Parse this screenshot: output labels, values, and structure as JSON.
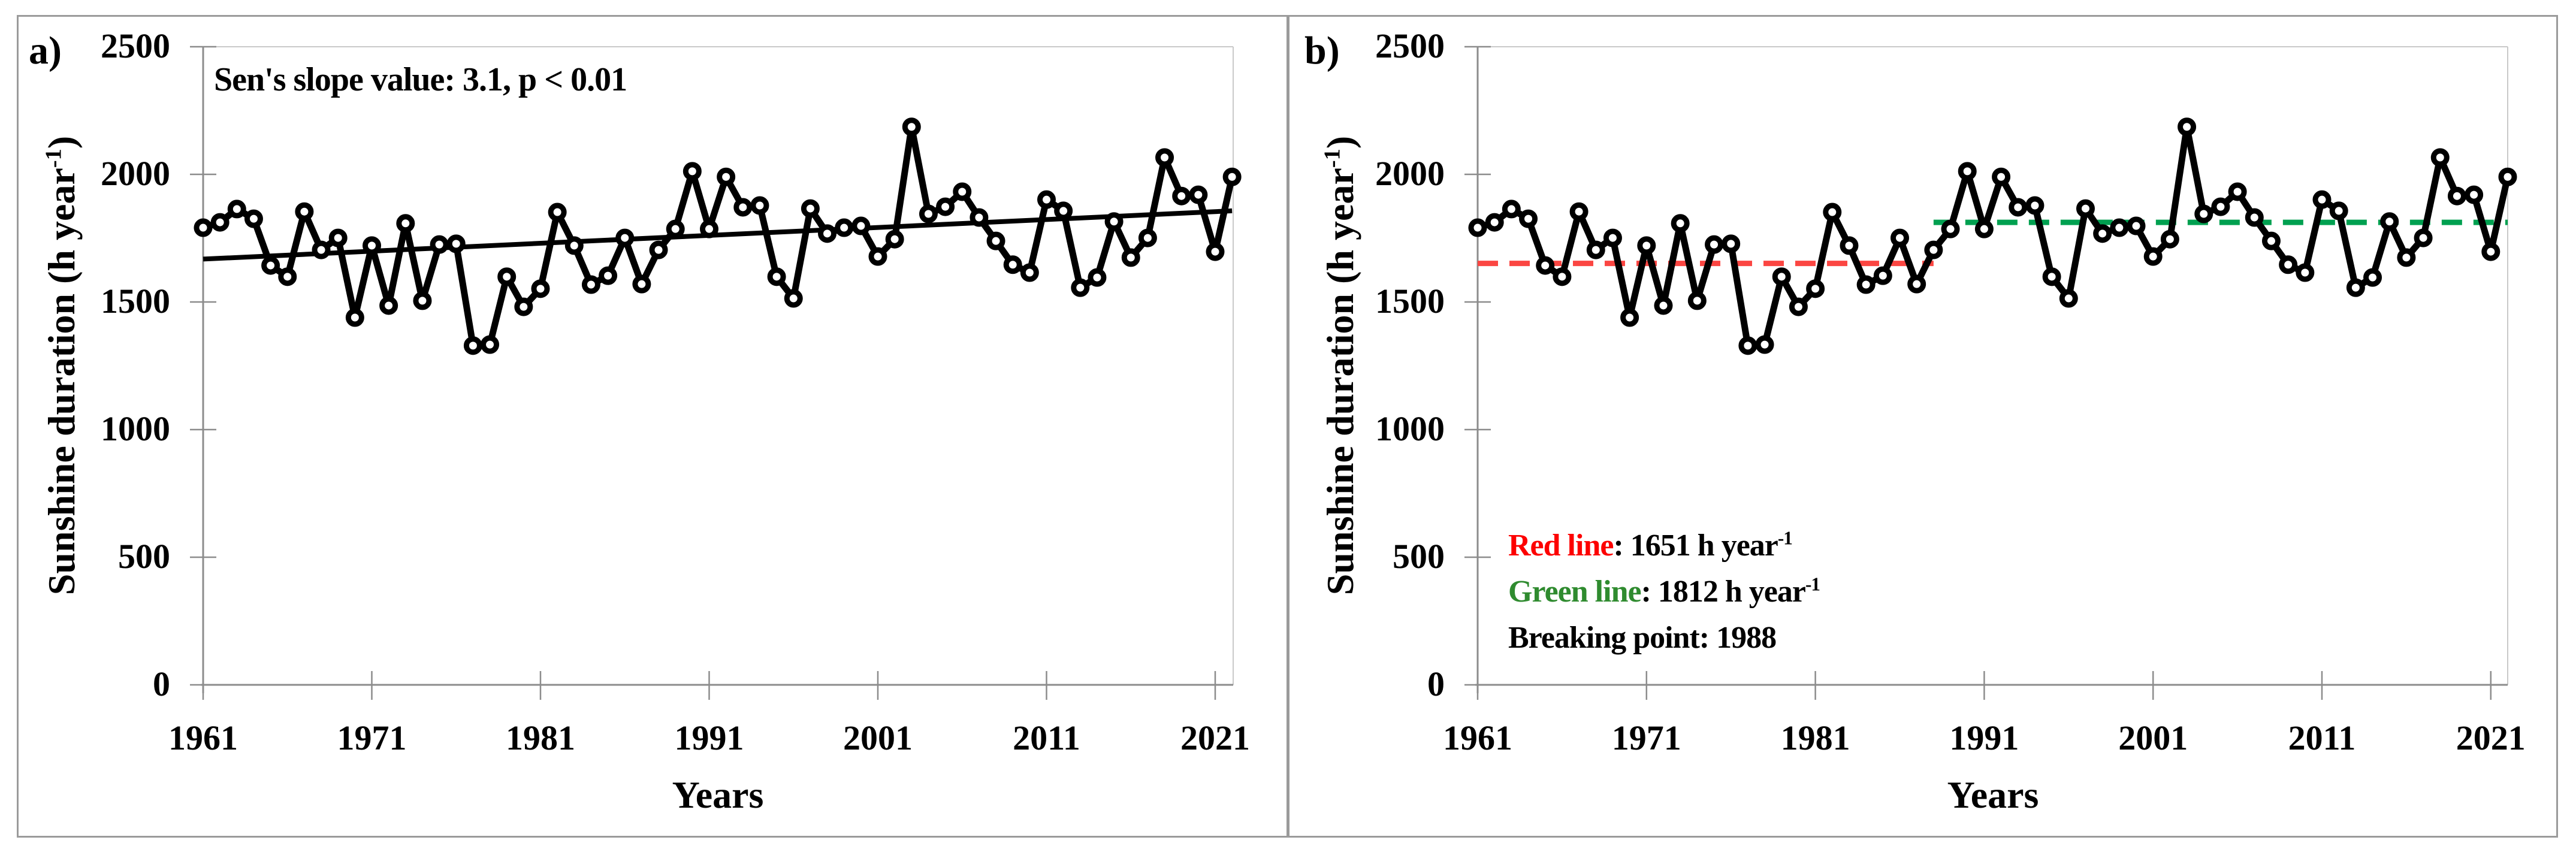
{
  "figure": {
    "panels": [
      {
        "letter": "a)",
        "annotation": "Sen's slope value: 3.1, p < 0.01"
      },
      {
        "letter": "b)",
        "annotations": {
          "red_label": "Red line",
          "red_rest": ": 1651 h year",
          "red_sup": "-1",
          "green_label": "Green line",
          "green_rest": ": 1812 h year",
          "green_sup": "-1",
          "breaking": "Breaking point: 1988"
        }
      }
    ],
    "ylabel": {
      "main": "Sunshine duration (h year",
      "sup": "-1",
      "close": ")"
    },
    "xlabel": "Years"
  },
  "colors": {
    "series": "#000000",
    "trend": "#000000",
    "red_line": "#fb4642",
    "green_line": "#00a050",
    "red_text": "#fd0000",
    "green_text": "#2f8b2f",
    "axis": "#8c8c8c",
    "plot_border": "#c9c9c9"
  },
  "chart_data": {
    "type": "line",
    "title": "",
    "xlabel": "Years",
    "ylabel": "Sunshine duration (h year-1)",
    "ylim": [
      0,
      2500
    ],
    "yticks": [
      2500,
      2000,
      1500,
      1000,
      500,
      0
    ],
    "ytick_labels": [
      "2500",
      "2000",
      "1500",
      "1000",
      "500",
      "0"
    ],
    "xticks": [
      1961,
      1971,
      1981,
      1991,
      2001,
      2011,
      2021
    ],
    "xtick_labels": [
      "1961",
      "1971",
      "1981",
      "1991",
      "2001",
      "2011",
      "2021"
    ],
    "grid": false,
    "x": [
      1961,
      1962,
      1963,
      1964,
      1965,
      1966,
      1967,
      1968,
      1969,
      1970,
      1971,
      1972,
      1973,
      1974,
      1975,
      1976,
      1977,
      1978,
      1979,
      1980,
      1981,
      1982,
      1983,
      1984,
      1985,
      1986,
      1987,
      1988,
      1989,
      1990,
      1991,
      1992,
      1993,
      1994,
      1995,
      1996,
      1997,
      1998,
      1999,
      2000,
      2001,
      2002,
      2003,
      2004,
      2005,
      2006,
      2007,
      2008,
      2009,
      2010,
      2011,
      2012,
      2013,
      2014,
      2015,
      2016,
      2017,
      2018,
      2019,
      2020,
      2021,
      2022
    ],
    "values": [
      1791,
      1812,
      1864,
      1826,
      1643,
      1599,
      1854,
      1704,
      1751,
      1439,
      1721,
      1486,
      1808,
      1505,
      1725,
      1728,
      1329,
      1333,
      1599,
      1481,
      1552,
      1852,
      1721,
      1568,
      1603,
      1751,
      1570,
      1704,
      1786,
      2012,
      1786,
      1990,
      1871,
      1878,
      1599,
      1514,
      1866,
      1768,
      1791,
      1798,
      1678,
      1746,
      2186,
      1845,
      1873,
      1932,
      1831,
      1739,
      1646,
      1615,
      1901,
      1857,
      1556,
      1596,
      1815,
      1674,
      1751,
      2066,
      1915,
      1920,
      1697,
      1990
    ],
    "panel_a": {
      "sen_slope": 3.1,
      "p_value": "p < 0.01",
      "trend_start_year": 1961,
      "trend_start_value": 1668,
      "trend_end_year": 2022,
      "trend_end_value": 1857
    },
    "panel_b": {
      "red_line_value": 1651,
      "red_from_year": 1961,
      "red_to_year": 1988,
      "green_line_value": 1812,
      "green_from_year": 1988,
      "green_to_year": 2022,
      "breaking_point": 1988
    }
  }
}
